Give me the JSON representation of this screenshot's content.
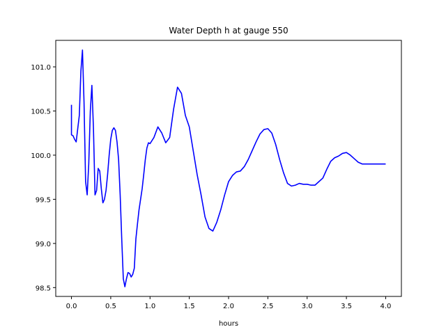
{
  "chart_data": {
    "type": "line",
    "title": "Water Depth h at gauge 550",
    "xlabel": "hours",
    "ylabel": "",
    "xlim": [
      -0.2,
      4.2
    ],
    "ylim": [
      98.4,
      101.3
    ],
    "xticks": [
      0.0,
      0.5,
      1.0,
      1.5,
      2.0,
      2.5,
      3.0,
      3.5,
      4.0
    ],
    "xtick_labels": [
      "0.0",
      "0.5",
      "1.0",
      "1.5",
      "2.0",
      "2.5",
      "3.0",
      "3.5",
      "4.0"
    ],
    "yticks": [
      98.5,
      99.0,
      99.5,
      100.0,
      100.5,
      101.0
    ],
    "ytick_labels": [
      "98.5",
      "99.0",
      "99.5",
      "100.0",
      "100.5",
      "101.0"
    ],
    "grid": false,
    "series": [
      {
        "color": "#0000ff",
        "x": [
          0.0,
          0.0,
          0.02,
          0.04,
          0.06,
          0.08,
          0.1,
          0.12,
          0.14,
          0.16,
          0.18,
          0.2,
          0.22,
          0.24,
          0.26,
          0.28,
          0.3,
          0.32,
          0.34,
          0.36,
          0.38,
          0.4,
          0.42,
          0.44,
          0.46,
          0.48,
          0.5,
          0.52,
          0.54,
          0.56,
          0.58,
          0.6,
          0.62,
          0.64,
          0.66,
          0.68,
          0.7,
          0.72,
          0.74,
          0.76,
          0.78,
          0.8,
          0.82,
          0.84,
          0.86,
          0.88,
          0.9,
          0.92,
          0.94,
          0.96,
          0.98,
          1.0,
          1.05,
          1.1,
          1.15,
          1.2,
          1.25,
          1.3,
          1.35,
          1.4,
          1.45,
          1.5,
          1.55,
          1.6,
          1.65,
          1.7,
          1.75,
          1.8,
          1.85,
          1.9,
          1.95,
          2.0,
          2.05,
          2.1,
          2.15,
          2.2,
          2.25,
          2.3,
          2.35,
          2.4,
          2.45,
          2.5,
          2.55,
          2.6,
          2.65,
          2.7,
          2.75,
          2.8,
          2.85,
          2.9,
          2.95,
          3.0,
          3.05,
          3.1,
          3.15,
          3.2,
          3.25,
          3.3,
          3.35,
          3.4,
          3.45,
          3.5,
          3.55,
          3.6,
          3.65,
          3.7,
          3.75,
          3.8,
          3.85,
          3.9,
          3.95,
          4.0
        ],
        "y": [
          100.57,
          100.23,
          100.22,
          100.18,
          100.15,
          100.3,
          100.45,
          100.95,
          101.19,
          100.6,
          99.7,
          99.55,
          99.9,
          100.5,
          100.79,
          100.3,
          99.55,
          99.6,
          99.85,
          99.82,
          99.62,
          99.46,
          99.5,
          99.6,
          99.78,
          100.0,
          100.18,
          100.28,
          100.31,
          100.28,
          100.15,
          99.95,
          99.55,
          99.05,
          98.6,
          98.51,
          98.6,
          98.67,
          98.66,
          98.62,
          98.65,
          98.72,
          99.05,
          99.22,
          99.38,
          99.5,
          99.62,
          99.78,
          99.95,
          100.08,
          100.14,
          100.13,
          100.2,
          100.32,
          100.25,
          100.14,
          100.2,
          100.52,
          100.77,
          100.7,
          100.45,
          100.32,
          100.05,
          99.78,
          99.55,
          99.3,
          99.17,
          99.14,
          99.24,
          99.38,
          99.55,
          99.7,
          99.77,
          99.81,
          99.82,
          99.87,
          99.95,
          100.05,
          100.15,
          100.24,
          100.29,
          100.3,
          100.25,
          100.12,
          99.95,
          99.8,
          99.68,
          99.65,
          99.66,
          99.68,
          99.67,
          99.67,
          99.66,
          99.66,
          99.7,
          99.74,
          99.84,
          99.93,
          99.97,
          99.99,
          100.02,
          100.03,
          100.0,
          99.96,
          99.92,
          99.9,
          99.9,
          99.9,
          99.9,
          99.9,
          99.9,
          99.9
        ]
      }
    ]
  }
}
